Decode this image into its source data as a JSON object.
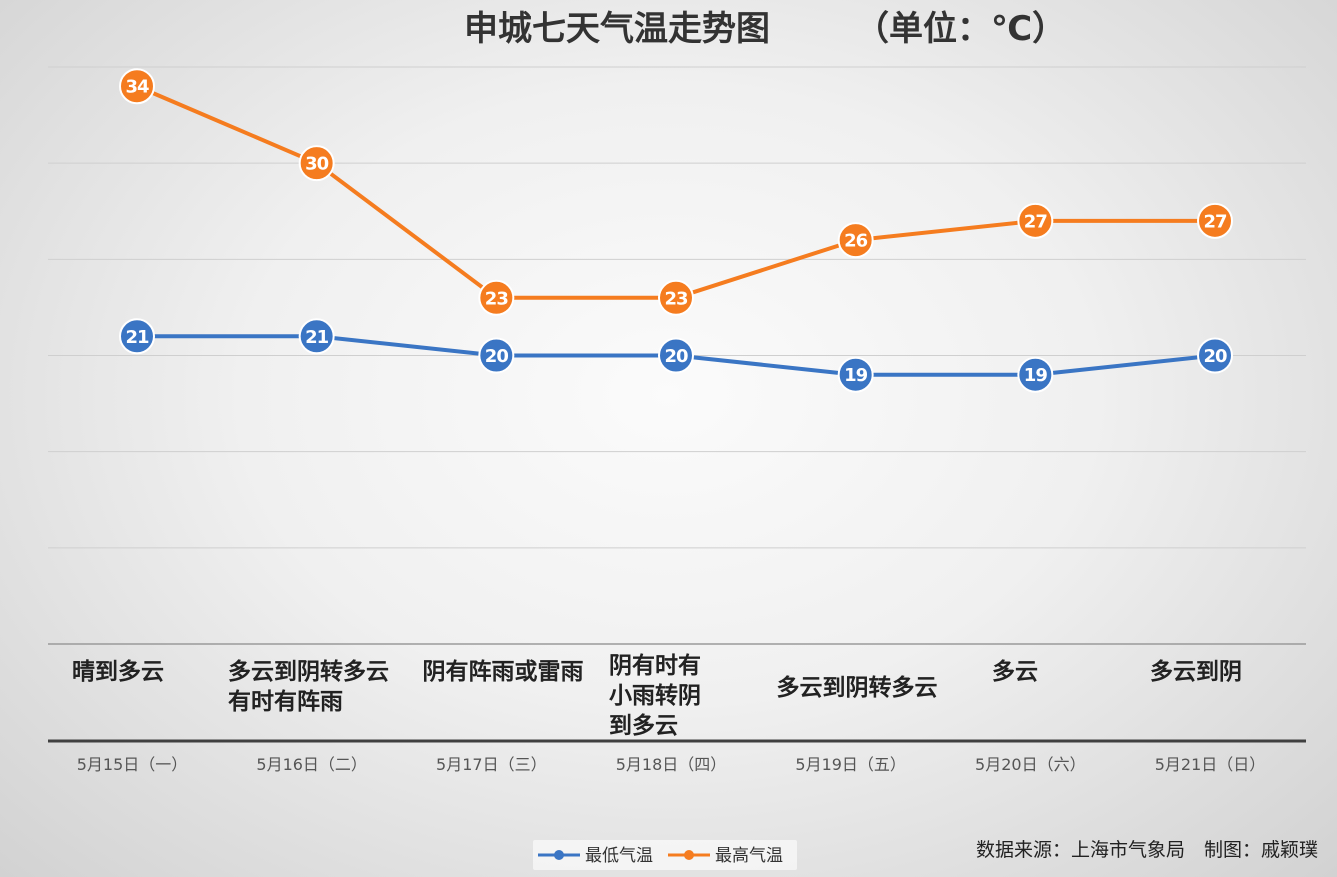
{
  "chart_data": {
    "type": "line",
    "title": "申城七天气温走势图",
    "unit": "（单位：℃）",
    "categories": [
      "5月15日（一）",
      "5月16日（二）",
      "5月17日（三）",
      "5月18日（四）",
      "5月19日（五）",
      "5月20日（六）",
      "5月21日（日）"
    ],
    "weather": [
      [
        "晴到多云"
      ],
      [
        "多云到阴转多云",
        "有时有阵雨"
      ],
      [
        "阴有阵雨或雷雨"
      ],
      [
        "阴有时有",
        "小雨转阴",
        "到多云"
      ],
      [
        "多云到阴转多云"
      ],
      [
        "多云"
      ],
      [
        "多云到阴"
      ]
    ],
    "series": [
      {
        "name": "最低气温",
        "color": "#3a75c4",
        "values": [
          21,
          21,
          20,
          20,
          19,
          19,
          20
        ]
      },
      {
        "name": "最高气温",
        "color": "#f57c1f",
        "values": [
          34,
          30,
          23,
          23,
          26,
          27,
          27
        ]
      }
    ],
    "ylim": [
      0,
      35
    ],
    "grid": true,
    "legend": "bottom-center",
    "data_labels": true
  },
  "footer": {
    "source": "数据来源：上海市气象局　制图：戚颖璞"
  }
}
